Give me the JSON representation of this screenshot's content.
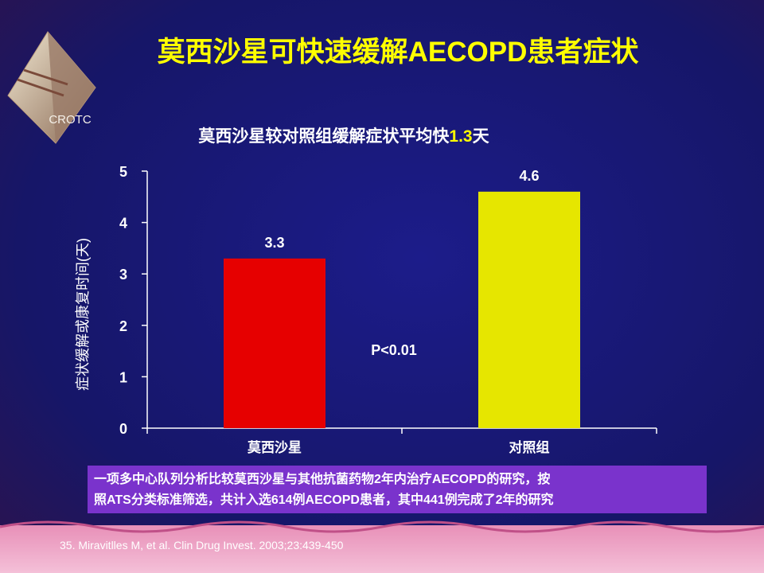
{
  "logo": "CROTC",
  "chart_data": {
    "type": "bar",
    "title": "莫西沙星可快速缓解AECOPD患者症状",
    "subtitle": [
      "莫西沙星较对照组缓解症状平均快",
      "1.3",
      "天"
    ],
    "ylabel": "症状缓解或康复时间(天)",
    "categories": [
      "莫西沙星",
      "对照组"
    ],
    "values": [
      3.3,
      4.6
    ],
    "colors": [
      "#e60000",
      "#e6e600"
    ],
    "ylim": [
      0,
      5
    ],
    "yticks": [
      0,
      1,
      2,
      3,
      4,
      5
    ],
    "annotation": "P<0.01"
  },
  "note": [
    "一项多中心队列分析比较莫西沙星与其他抗菌药物2年内治疗AECOPD的研究，按",
    "照ATS分类标准筛选，共计入选614例AECOPD患者，其中441例完成了2年的研究"
  ],
  "citation": "35. Miravitlles M,  et al. Clin Drug Invest. 2003;23:439-450"
}
